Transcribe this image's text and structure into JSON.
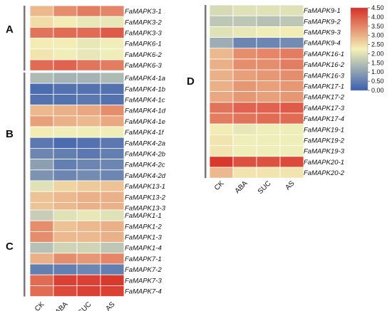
{
  "chart_data": {
    "type": "heatmap",
    "columns": [
      "CK",
      "ABA",
      "SUC",
      "AS"
    ],
    "colorbar": {
      "min": 0.0,
      "max": 4.5,
      "ticks": [
        "4.50",
        "4.00",
        "3.50",
        "3.00",
        "2.50",
        "2.00",
        "1.50",
        "1.00",
        "0.50",
        "0.00"
      ],
      "colors": [
        "#3a5fae",
        "#f4f1b8",
        "#d73027"
      ]
    },
    "panels": [
      {
        "label": "A",
        "rows": [
          {
            "name": "FaMAPK3-1",
            "values": [
              2.9,
              3.4,
              3.6,
              3.5
            ]
          },
          {
            "name": "FaMAPK3-2",
            "values": [
              2.5,
              2.3,
              2.1,
              2.1
            ]
          },
          {
            "name": "FaMAPK3-3",
            "values": [
              3.7,
              3.8,
              3.8,
              4.0
            ]
          },
          {
            "name": "FaMAPK6-1",
            "values": [
              2.3,
              2.3,
              2.1,
              2.2
            ]
          },
          {
            "name": "FaMAPK6-2",
            "values": [
              2.4,
              2.2,
              2.1,
              2.2
            ]
          },
          {
            "name": "FaMAPK6-3",
            "values": [
              3.8,
              3.9,
              3.7,
              3.6
            ]
          }
        ]
      },
      {
        "label": "B",
        "rows": [
          {
            "name": "FaMAPK4-1a",
            "values": [
              1.4,
              1.3,
              1.3,
              1.4
            ]
          },
          {
            "name": "FaMAPK4-1b",
            "values": [
              0.2,
              0.3,
              0.3,
              0.3
            ]
          },
          {
            "name": "FaMAPK4-1c",
            "values": [
              0.3,
              0.3,
              0.4,
              0.3
            ]
          },
          {
            "name": "FaMAPK4-1d",
            "values": [
              2.9,
              3.0,
              3.1,
              3.4
            ]
          },
          {
            "name": "FaMAPK4-1e",
            "values": [
              3.2,
              3.0,
              2.9,
              3.1
            ]
          },
          {
            "name": "FaMAPK4-1f",
            "values": [
              2.3,
              2.2,
              2.2,
              2.2
            ]
          },
          {
            "name": "FaMAPK4-2a",
            "values": [
              0.4,
              0.2,
              0.3,
              0.4
            ]
          },
          {
            "name": "FaMAPK4-2b",
            "values": [
              0.6,
              0.5,
              0.4,
              0.5
            ]
          },
          {
            "name": "FaMAPK4-2c",
            "values": [
              1.0,
              0.5,
              0.6,
              0.6
            ]
          },
          {
            "name": "FaMAPK4-2d",
            "values": [
              0.8,
              0.6,
              0.7,
              0.6
            ]
          },
          {
            "name": "FaMAPK13-1",
            "values": [
              2.0,
              2.6,
              2.7,
              2.8
            ]
          },
          {
            "name": "FaMAPK13-2",
            "values": [
              2.8,
              2.9,
              3.0,
              3.0
            ]
          },
          {
            "name": "FaMAPK13-3",
            "values": [
              2.8,
              2.9,
              3.0,
              3.0
            ]
          }
        ]
      },
      {
        "label": "C",
        "rows": [
          {
            "name": "FaMAPK1-1",
            "values": [
              1.7,
              2.0,
              2.1,
              2.0
            ]
          },
          {
            "name": "FaMAPK1-2",
            "values": [
              3.4,
              2.8,
              2.9,
              3.0
            ]
          },
          {
            "name": "FaMAPK1-3",
            "values": [
              3.4,
              2.9,
              2.9,
              3.0
            ]
          },
          {
            "name": "FaMAPK1-4",
            "values": [
              1.5,
              1.8,
              1.8,
              1.6
            ]
          },
          {
            "name": "FaMAPK7-1",
            "values": [
              3.0,
              3.4,
              3.3,
              3.5
            ]
          },
          {
            "name": "FaMAPK7-2",
            "values": [
              0.5,
              0.5,
              0.6,
              0.5
            ]
          },
          {
            "name": "FaMAPK7-3",
            "values": [
              3.8,
              4.3,
              4.3,
              4.4
            ]
          },
          {
            "name": "FaMAPK7-4",
            "values": [
              3.8,
              4.2,
              4.3,
              4.3
            ]
          }
        ]
      },
      {
        "label": "D",
        "rows": [
          {
            "name": "FaMAPK9-1",
            "values": [
              1.9,
              2.0,
              2.0,
              2.0
            ]
          },
          {
            "name": "FaMAPK9-2",
            "values": [
              1.6,
              1.6,
              1.5,
              1.6
            ]
          },
          {
            "name": "FaMAPK9-3",
            "values": [
              2.0,
              2.1,
              2.2,
              2.3
            ]
          },
          {
            "name": "FaMAPK9-4",
            "values": [
              1.2,
              0.6,
              0.6,
              0.7
            ]
          },
          {
            "name": "FaMAPK16-1",
            "values": [
              2.9,
              3.4,
              3.5,
              3.6
            ]
          },
          {
            "name": "FaMAPK16-2",
            "values": [
              3.0,
              3.4,
              3.4,
              3.6
            ]
          },
          {
            "name": "FaMAPK16-3",
            "values": [
              3.0,
              3.2,
              3.3,
              3.4
            ]
          },
          {
            "name": "FaMAPK17-1",
            "values": [
              3.0,
              3.3,
              3.2,
              3.3
            ]
          },
          {
            "name": "FaMAPK17-2",
            "values": [
              3.1,
              3.3,
              3.2,
              3.3
            ]
          },
          {
            "name": "FaMAPK17-3",
            "values": [
              3.7,
              3.9,
              3.9,
              4.0
            ]
          },
          {
            "name": "FaMAPK17-4",
            "values": [
              3.6,
              3.7,
              3.8,
              3.8
            ]
          },
          {
            "name": "FaMAPK19-1",
            "values": [
              2.3,
              2.1,
              2.2,
              2.2
            ]
          },
          {
            "name": "FaMAPK19-2",
            "values": [
              2.4,
              2.2,
              2.2,
              2.2
            ]
          },
          {
            "name": "FaMAPK19-3",
            "values": [
              2.4,
              2.2,
              2.2,
              2.2
            ]
          },
          {
            "name": "FaMAPK20-1",
            "values": [
              4.4,
              4.1,
              4.1,
              4.2
            ]
          },
          {
            "name": "FaMAPK20-2",
            "values": [
              2.9,
              2.4,
              2.4,
              2.4
            ]
          }
        ]
      }
    ]
  }
}
